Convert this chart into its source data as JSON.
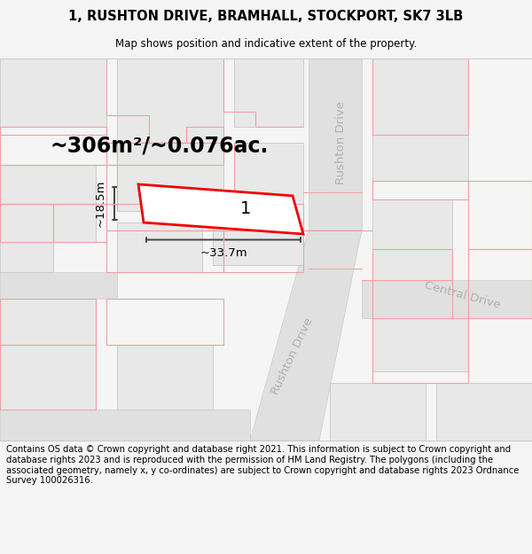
{
  "title": "1, RUSHTON DRIVE, BRAMHALL, STOCKPORT, SK7 3LB",
  "subtitle": "Map shows position and indicative extent of the property.",
  "footer": "Contains OS data © Crown copyright and database right 2021. This information is subject to Crown copyright and database rights 2023 and is reproduced with the permission of HM Land Registry. The polygons (including the associated geometry, namely x, y co-ordinates) are subject to Crown copyright and database rights 2023 Ordnance Survey 100026316.",
  "area_label": "~306m²/~0.076ac.",
  "width_label": "~33.7m",
  "height_label": "~18.5m",
  "plot_number": "1",
  "bg_color": "#f5f5f5",
  "map_bg": "#ffffff",
  "building_fill": "#e8e8e8",
  "building_edge": "#cccccc",
  "plot_outline_color": "#ee0000",
  "lot_line_color": "#f0a0a0",
  "road_fill": "#e0e0e0",
  "road_label_color": "#b0b0b0",
  "dim_line_color": "#444444",
  "title_fontsize": 10.5,
  "subtitle_fontsize": 8.5,
  "footer_fontsize": 7.2,
  "area_fontsize": 17,
  "dim_fontsize": 9.5,
  "plot_num_fontsize": 14,
  "road_label_fontsize": 9.5
}
